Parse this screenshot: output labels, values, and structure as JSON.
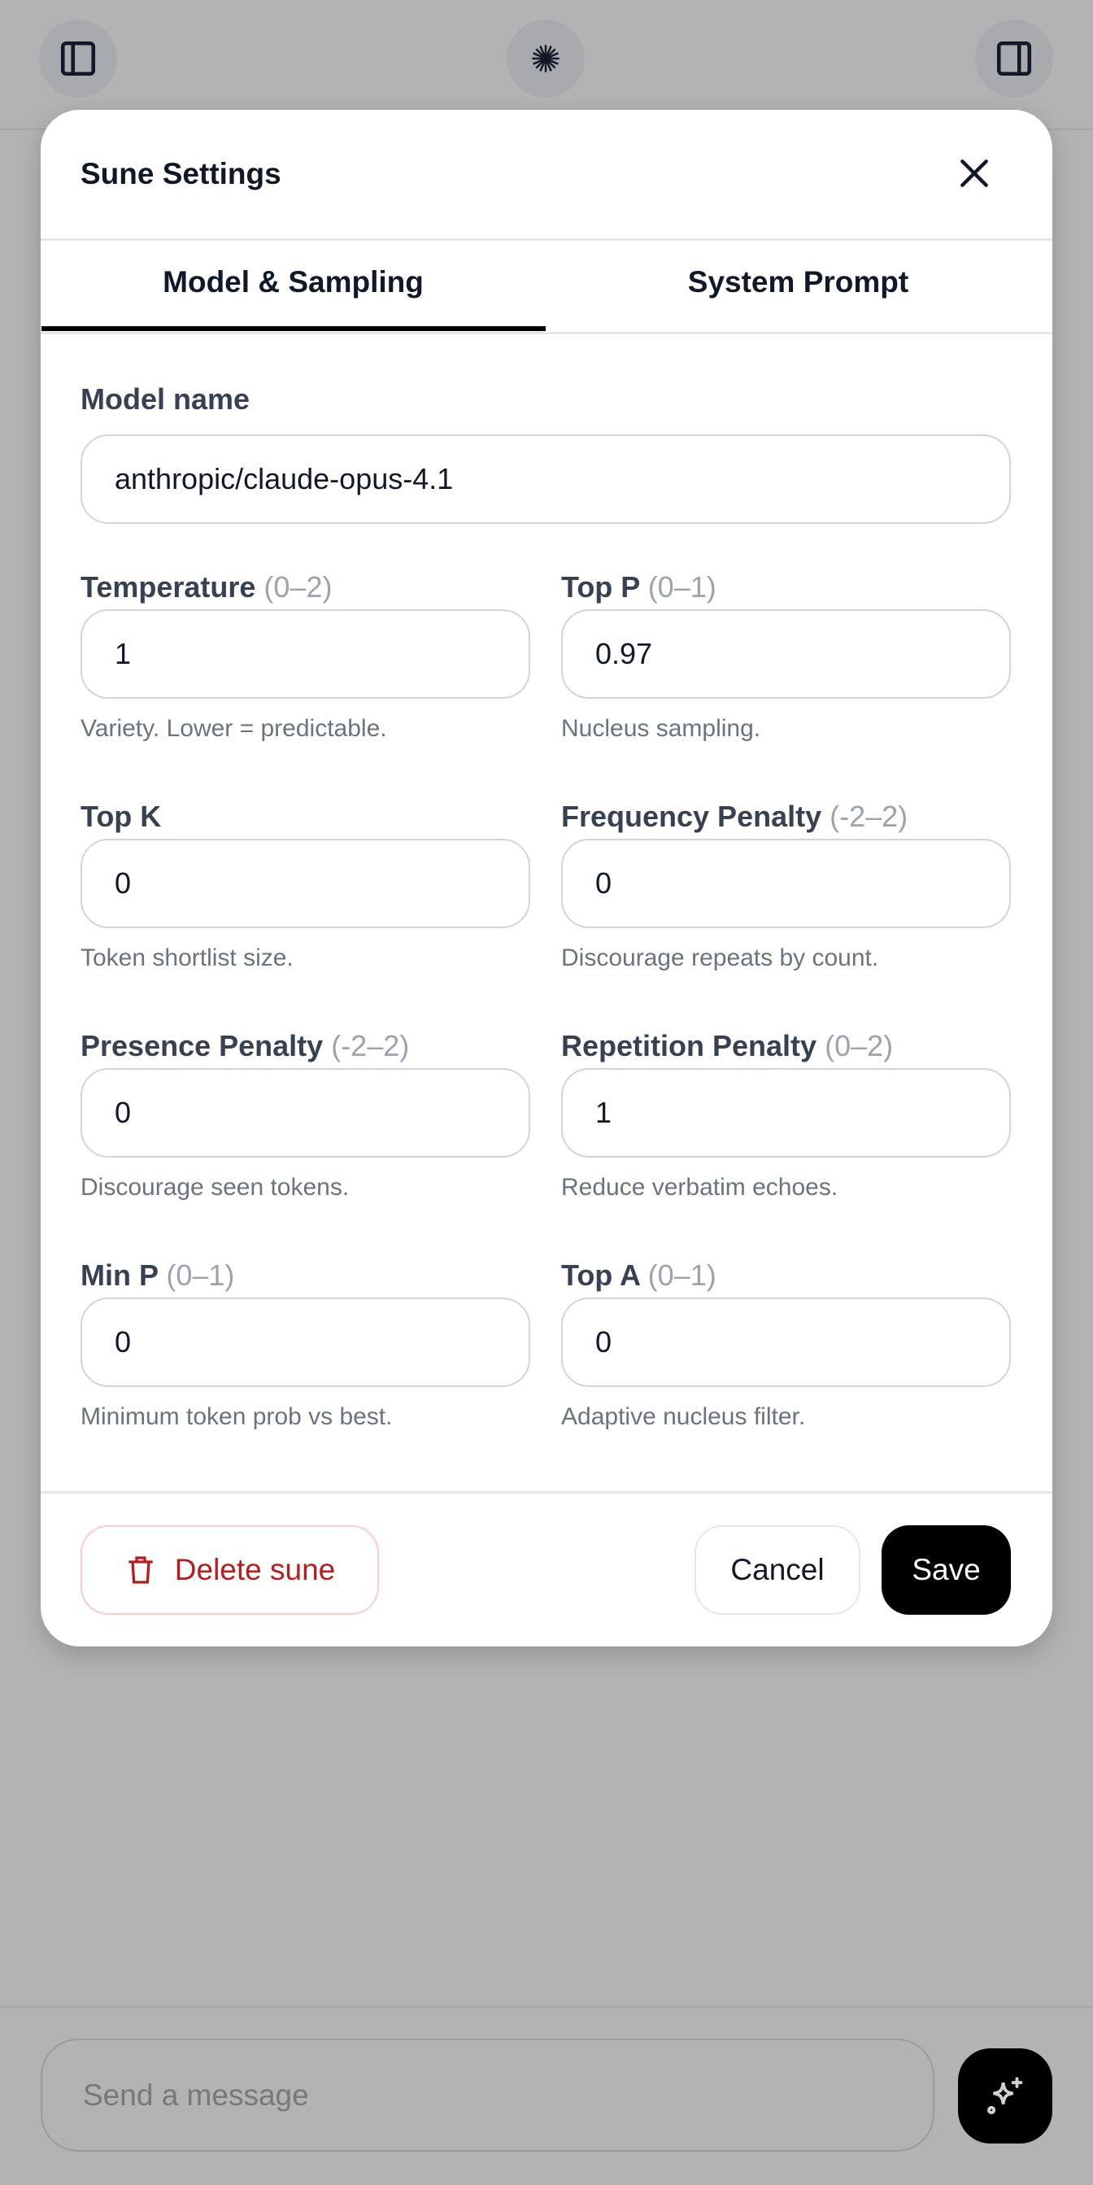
{
  "topbar": {
    "left_icon": "sidebar-left-icon",
    "center_icon": "sparkle-burst-icon",
    "right_icon": "sidebar-right-icon"
  },
  "modal": {
    "title": "Sune Settings",
    "tabs": [
      {
        "label": "Model & Sampling",
        "active": true
      },
      {
        "label": "System Prompt",
        "active": false
      }
    ],
    "model_name": {
      "label": "Model name",
      "value": "anthropic/claude-opus-4.1"
    },
    "fields": [
      {
        "label": "Temperature",
        "range": "(0–2)",
        "value": "1",
        "help": "Variety. Lower = predictable."
      },
      {
        "label": "Top P",
        "range": "(0–1)",
        "value": "0.97",
        "help": "Nucleus sampling."
      },
      {
        "label": "Top K",
        "range": "",
        "value": "0",
        "help": "Token shortlist size."
      },
      {
        "label": "Frequency Penalty",
        "range": "(-2–2)",
        "value": "0",
        "help": "Discourage repeats by count."
      },
      {
        "label": "Presence Penalty",
        "range": "(-2–2)",
        "value": "0",
        "help": "Discourage seen tokens."
      },
      {
        "label": "Repetition Penalty",
        "range": "(0–2)",
        "value": "1",
        "help": "Reduce verbatim echoes."
      },
      {
        "label": "Min P",
        "range": "(0–1)",
        "value": "0",
        "help": "Minimum token prob vs best."
      },
      {
        "label": "Top A",
        "range": "(0–1)",
        "value": "0",
        "help": "Adaptive nucleus filter."
      }
    ],
    "footer": {
      "delete_label": "Delete sune",
      "cancel_label": "Cancel",
      "save_label": "Save"
    }
  },
  "composer": {
    "placeholder": "Send a message"
  },
  "colors": {
    "danger": "#b91c1c",
    "primary": "#000000",
    "backdrop": "#b3b3b3"
  }
}
